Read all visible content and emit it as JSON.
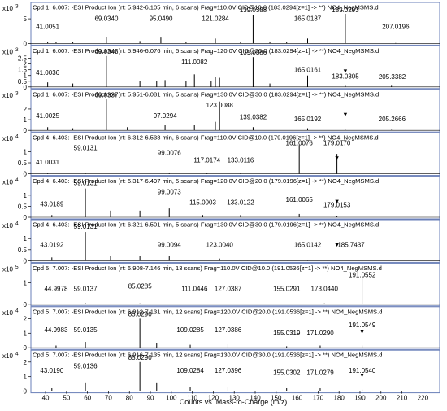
{
  "chart_data": {
    "type": "spectrum-stack",
    "x_axis": {
      "label": "Counts vs. Mass-to-Charge (m/z)",
      "range": [
        33,
        228
      ],
      "ticks": [
        40,
        50,
        60,
        70,
        80,
        90,
        100,
        110,
        120,
        130,
        140,
        150,
        160,
        170,
        180,
        190,
        200,
        210,
        220
      ]
    },
    "panels": [
      {
        "title": "Cpd 1: 6.007: -ESI Product Ion (rt: 5.942-6.105 min, 6 scans) Frag=110.0V CID@10.0 (183.0294[z=1] -> **) NO4_NegMSMS.d",
        "scale_label": "x10",
        "scale_exp": "3",
        "ymax": 6.5,
        "yticks": [
          0,
          5
        ],
        "peaks": [
          [
            41.0,
            0.4
          ],
          [
            45.0,
            0.35
          ],
          [
            53.0,
            0.3
          ],
          [
            69.0,
            1.3
          ],
          [
            85.0,
            0.5
          ],
          [
            95.0,
            1.2
          ],
          [
            107.0,
            0.4
          ],
          [
            121.0,
            1.0
          ],
          [
            133.0,
            0.4
          ],
          [
            139.0,
            5.8
          ],
          [
            147.0,
            0.4
          ],
          [
            155.0,
            0.3
          ],
          [
            165.0,
            1.0
          ],
          [
            183.0,
            6.0
          ],
          [
            207.0,
            0.1
          ]
        ],
        "labels": [
          {
            "x": 41.0051,
            "text": "41.0051",
            "h": 2.6
          },
          {
            "x": 69.034,
            "text": "69.0340",
            "h": 4.3
          },
          {
            "x": 95.049,
            "text": "95.0490",
            "h": 4.3
          },
          {
            "x": 121.0284,
            "text": "121.0284",
            "h": 4.3
          },
          {
            "x": 139.0388,
            "text": "139.0388",
            "h": 6.0
          },
          {
            "x": 165.0187,
            "text": "165.0187",
            "h": 4.3
          },
          {
            "x": 183.0293,
            "text": "183.0293",
            "h": 6.0
          },
          {
            "x": 207.0196,
            "text": "207.0196",
            "h": 2.6
          }
        ]
      },
      {
        "title": "Cpd 1: 6.007: -ESI Product Ion (rt: 5.946-6.076 min, 5 scans) Frag=120.0V CID@20.0 (183.0294[z=1] -> **) NO4_NegMSMS.d",
        "scale_label": "x10",
        "scale_exp": "3",
        "ymax": 2.8,
        "yticks": [
          0,
          0.5,
          1,
          1.5,
          2,
          2.5
        ],
        "peaks": [
          [
            41.0,
            0.4
          ],
          [
            53.0,
            0.3
          ],
          [
            69.0,
            2.7
          ],
          [
            85.0,
            0.5
          ],
          [
            93.0,
            0.5
          ],
          [
            97.0,
            0.6
          ],
          [
            107.0,
            0.5
          ],
          [
            111.0,
            1.1
          ],
          [
            119.0,
            0.5
          ],
          [
            121.0,
            0.9
          ],
          [
            123.0,
            0.8
          ],
          [
            139.0,
            2.6
          ],
          [
            147.0,
            0.3
          ],
          [
            165.0,
            1.0
          ],
          [
            183.0,
            0.1
          ],
          [
            205.0,
            0.1
          ]
        ],
        "marker": 183.0,
        "labels": [
          {
            "x": 41.0036,
            "text": "41.0036",
            "h": 0.9
          },
          {
            "x": 69.0343,
            "text": "69.0343",
            "h": 2.75
          },
          {
            "x": 111.0082,
            "text": "111.0082",
            "h": 1.85
          },
          {
            "x": 139.0386,
            "text": "139.0386",
            "h": 2.7
          },
          {
            "x": 165.0161,
            "text": "165.0161",
            "h": 1.15
          },
          {
            "x": 183.0305,
            "text": "183.0305",
            "h": 0.6
          },
          {
            "x": 205.3382,
            "text": "205.3382",
            "h": 0.55
          }
        ]
      },
      {
        "title": "Cpd 1: 6.007: -ESI Product Ion (rt: 5.951-6.081 min, 5 scans) Frag=130.0V CID@30.0 (183.0294[z=1] -> **) NO4_NegMSMS.d",
        "scale_label": "x10",
        "scale_exp": "3",
        "ymax": 3.0,
        "yticks": [
          0,
          1,
          2
        ],
        "peaks": [
          [
            41.0,
            0.3
          ],
          [
            53.0,
            0.2
          ],
          [
            69.0,
            2.9
          ],
          [
            79.0,
            0.3
          ],
          [
            97.0,
            0.5
          ],
          [
            111.0,
            0.5
          ],
          [
            121.0,
            0.8
          ],
          [
            123.0,
            2.7
          ],
          [
            139.0,
            0.3
          ],
          [
            165.0,
            0.2
          ],
          [
            183.0,
            0.05
          ],
          [
            205.0,
            0.05
          ]
        ],
        "marker": 183.0,
        "labels": [
          {
            "x": 41.0025,
            "text": "41.0025",
            "h": 1.0
          },
          {
            "x": 69.0337,
            "text": "69.0337",
            "h": 2.95
          },
          {
            "x": 97.0294,
            "text": "97.0294",
            "h": 1.0
          },
          {
            "x": 123.0088,
            "text": "123.0088",
            "h": 2.0
          },
          {
            "x": 139.0382,
            "text": "139.0382",
            "h": 0.9
          },
          {
            "x": 165.0192,
            "text": "165.0192",
            "h": 0.7
          },
          {
            "x": 205.2666,
            "text": "205.2666",
            "h": 0.7
          }
        ]
      },
      {
        "title": "Cpd 4: 6.403: -ESI Product Ion (rt: 6.312-6.538 min, 6 scans) Frag=110.0V CID@10.0 (179.0196[z=1] -> **) NO4_NegMSMS.d",
        "scale_label": "x10",
        "scale_exp": "4",
        "ymax": 1.45,
        "yticks": [
          0,
          0.5,
          1
        ],
        "peaks": [
          [
            41.0,
            0.05
          ],
          [
            59.0,
            0.05
          ],
          [
            99.0,
            0.06
          ],
          [
            117.0,
            0.04
          ],
          [
            133.0,
            0.04
          ],
          [
            161.0,
            1.3
          ],
          [
            179.0,
            0.9
          ]
        ],
        "marker": 179.0,
        "labels": [
          {
            "x": 41.0031,
            "text": "41.0031",
            "h": 0.35
          },
          {
            "x": 59.0131,
            "text": "59.0131",
            "h": 1.0
          },
          {
            "x": 99.0076,
            "text": "99.0076",
            "h": 0.78
          },
          {
            "x": 117.0174,
            "text": "117.0174",
            "h": 0.45
          },
          {
            "x": 133.0116,
            "text": "133.0116",
            "h": 0.45
          },
          {
            "x": 161.0076,
            "text": "161.0076",
            "h": 1.22
          },
          {
            "x": 179.017,
            "text": "179.0170",
            "h": 1.22
          }
        ]
      },
      {
        "title": "Cpd 4: 6.403: -ESI Product Ion (rt: 6.317-6.497 min, 5 scans) Frag=120.0V CID@20.0 (179.0196[z=1] -> **) NO4_NegMSMS.d",
        "scale_label": "x10",
        "scale_exp": "4",
        "ymax": 1.45,
        "yticks": [
          0,
          0.5,
          1
        ],
        "peaks": [
          [
            43.0,
            0.1
          ],
          [
            59.0,
            1.3
          ],
          [
            71.0,
            0.3
          ],
          [
            85.0,
            0.3
          ],
          [
            99.0,
            0.4
          ],
          [
            115.0,
            0.1
          ],
          [
            133.0,
            0.1
          ],
          [
            161.0,
            0.15
          ],
          [
            179.0,
            0.05
          ]
        ],
        "marker": 179.0,
        "labels": [
          {
            "x": 59.0131,
            "text": "59.0131",
            "h": 1.38
          },
          {
            "x": 99.0073,
            "text": "99.0073",
            "h": 0.98
          },
          {
            "x": 43.0189,
            "text": "43.0189",
            "h": 0.42
          },
          {
            "x": 115.0003,
            "text": "115.0003",
            "h": 0.5
          },
          {
            "x": 133.0122,
            "text": "133.0122",
            "h": 0.5
          },
          {
            "x": 161.0065,
            "text": "161.0065",
            "h": 0.62
          },
          {
            "x": 179.0153,
            "text": "179.0153",
            "h": 0.38
          }
        ]
      },
      {
        "title": "Cpd 4: 6.403: -ESI Product Ion (rt: 6.321-6.501 min, 5 scans) Frag=130.0V CID@30.0 (179.0196[z=1] -> **) NO4_NegMSMS.d",
        "scale_label": "x10",
        "scale_exp": "4",
        "ymax": 1.45,
        "yticks": [
          0,
          0.5,
          1
        ],
        "peaks": [
          [
            43.0,
            0.15
          ],
          [
            59.0,
            1.3
          ],
          [
            71.0,
            0.2
          ],
          [
            85.0,
            0.2
          ],
          [
            99.0,
            0.2
          ],
          [
            123.0,
            0.1
          ],
          [
            165.0,
            0.05
          ]
        ],
        "marker": 179.0,
        "labels": [
          {
            "x": 59.0131,
            "text": "59.0131",
            "h": 1.38
          },
          {
            "x": 43.0192,
            "text": "43.0192",
            "h": 0.55
          },
          {
            "x": 99.0094,
            "text": "99.0094",
            "h": 0.55
          },
          {
            "x": 123.004,
            "text": "123.0040",
            "h": 0.55
          },
          {
            "x": 165.0142,
            "text": "165.0142",
            "h": 0.55
          },
          {
            "x": 185.7437,
            "text": "185.7437",
            "h": 0.55
          }
        ]
      },
      {
        "title": "Cpd 5: 7.007: -ESI Product Ion (rt: 6.908-7.146 min, 13 scans) Frag=110.0V CID@10.0 (191.0536[z=1] -> **) NO4_NegMSMS.d",
        "scale_label": "x10",
        "scale_exp": "5",
        "ymax": 1.5,
        "yticks": [
          0,
          1
        ],
        "peaks": [
          [
            45.0,
            0.03
          ],
          [
            59.0,
            0.05
          ],
          [
            85.0,
            0.04
          ],
          [
            111.0,
            0.03
          ],
          [
            127.0,
            0.03
          ],
          [
            155.0,
            0.02
          ],
          [
            173.0,
            0.04
          ],
          [
            191.0,
            1.2
          ]
        ],
        "labels": [
          {
            "x": 191.0552,
            "text": "191.0552",
            "h": 1.2
          },
          {
            "x": 44.9978,
            "text": "44.9978",
            "h": 0.55
          },
          {
            "x": 59.0137,
            "text": "59.0137",
            "h": 0.55
          },
          {
            "x": 85.0285,
            "text": "85.0285",
            "h": 0.65
          },
          {
            "x": 111.0446,
            "text": "111.0446",
            "h": 0.55
          },
          {
            "x": 127.0387,
            "text": "127.0387",
            "h": 0.55
          },
          {
            "x": 155.0291,
            "text": "155.0291",
            "h": 0.55
          },
          {
            "x": 173.044,
            "text": "173.0440",
            "h": 0.55
          }
        ]
      },
      {
        "title": "Cpd 5: 7.007: -ESI Product Ion (rt: 6.912-7.131 min, 12 scans) Frag=120.0V CID@20.0 (191.0536[z=1] -> **) NO4_NegMSMS.d",
        "scale_label": "x10",
        "scale_exp": "4",
        "ymax": 2.2,
        "yticks": [
          0,
          1,
          2
        ],
        "peaks": [
          [
            45.0,
            0.15
          ],
          [
            59.0,
            0.4
          ],
          [
            85.0,
            2.0
          ],
          [
            93.0,
            0.3
          ],
          [
            109.0,
            0.2
          ],
          [
            127.0,
            0.25
          ],
          [
            155.0,
            0.1
          ],
          [
            171.0,
            0.15
          ],
          [
            191.0,
            0.15
          ]
        ],
        "marker": 191.0,
        "labels": [
          {
            "x": 85.029,
            "text": "85.0290",
            "h": 2.05
          },
          {
            "x": 191.0549,
            "text": "191.0549",
            "h": 1.3
          },
          {
            "x": 44.9983,
            "text": "44.9983",
            "h": 0.95
          },
          {
            "x": 59.0135,
            "text": "59.0135",
            "h": 0.95
          },
          {
            "x": 109.0285,
            "text": "109.0285",
            "h": 0.95
          },
          {
            "x": 127.0386,
            "text": "127.0386",
            "h": 0.95
          },
          {
            "x": 155.0319,
            "text": "155.0319",
            "h": 0.75
          },
          {
            "x": 171.029,
            "text": "171.0290",
            "h": 0.75
          }
        ]
      },
      {
        "title": "Cpd 5: 7.007: -ESI Product Ion (rt: 6.916-7.135 min, 12 scans) Frag=130.0V CID@30.0 (191.0536[z=1] -> **) NO4_NegMSMS.d",
        "scale_label": "x10",
        "scale_exp": "4",
        "ymax": 2.2,
        "yticks": [
          0,
          1,
          2
        ],
        "peaks": [
          [
            43.0,
            0.2
          ],
          [
            59.0,
            0.6
          ],
          [
            85.0,
            2.0
          ],
          [
            93.0,
            0.6
          ],
          [
            109.0,
            0.3
          ],
          [
            127.0,
            0.3
          ],
          [
            155.0,
            0.2
          ],
          [
            171.0,
            0.2
          ],
          [
            191.0,
            0.1
          ]
        ],
        "marker": 191.0,
        "labels": [
          {
            "x": 85.029,
            "text": "85.0290",
            "h": 2.05
          },
          {
            "x": 43.019,
            "text": "43.0190",
            "h": 1.15
          },
          {
            "x": 59.0136,
            "text": "59.0136",
            "h": 1.45
          },
          {
            "x": 109.0284,
            "text": "109.0284",
            "h": 1.15
          },
          {
            "x": 127.0396,
            "text": "127.0396",
            "h": 1.15
          },
          {
            "x": 155.0302,
            "text": "155.0302",
            "h": 1.0
          },
          {
            "x": 171.0279,
            "text": "171.0279",
            "h": 1.0
          },
          {
            "x": 191.054,
            "text": "191.0540",
            "h": 1.15
          }
        ]
      }
    ]
  }
}
